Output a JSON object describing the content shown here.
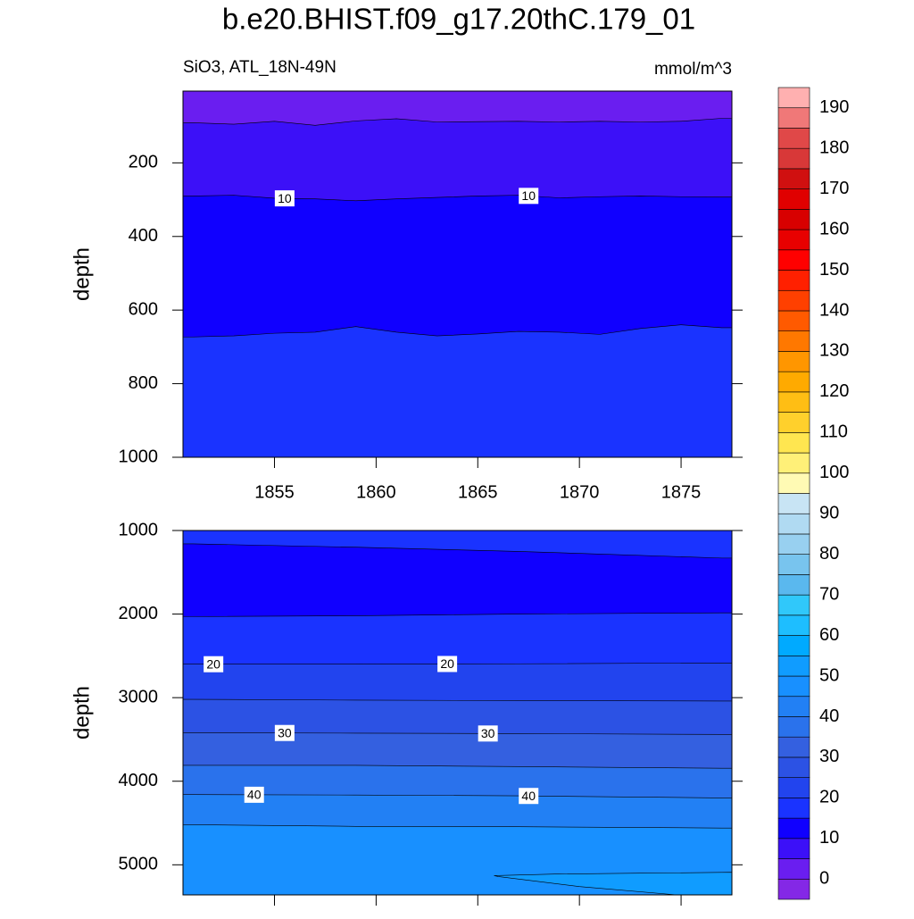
{
  "title": "b.e20.BHIST.f09_g17.20thC.179_01",
  "subtitle": "SiO3, ATL_18N-49N",
  "units": "mmol/m^3",
  "colorbar": {
    "levels": [
      0,
      5,
      10,
      15,
      20,
      25,
      30,
      35,
      40,
      45,
      50,
      55,
      60,
      65,
      70,
      75,
      80,
      85,
      90,
      95,
      100,
      105,
      110,
      115,
      120,
      125,
      130,
      135,
      140,
      145,
      150,
      155,
      160,
      165,
      170,
      175,
      180,
      185,
      190
    ],
    "ticks": [
      0,
      10,
      20,
      30,
      40,
      50,
      60,
      70,
      80,
      90,
      100,
      110,
      120,
      130,
      140,
      150,
      160,
      170,
      180,
      190
    ],
    "colors": [
      "#8428e6",
      "#6a1ef0",
      "#3c10f8",
      "#1000ff",
      "#1a33ff",
      "#2244ee",
      "#2c52e4",
      "#3460e0",
      "#2a72ec",
      "#2280f4",
      "#1890ff",
      "#109cff",
      "#00aaff",
      "#1ebeff",
      "#30c8fa",
      "#5ab8ee",
      "#78c4ee",
      "#98d0f0",
      "#b0daf2",
      "#c8e4f4",
      "#fffab4",
      "#fff078",
      "#ffe650",
      "#ffd02c",
      "#ffbe14",
      "#ffaa00",
      "#ff9600",
      "#ff7800",
      "#ff5a00",
      "#ff4000",
      "#ff2000",
      "#ff0000",
      "#e80000",
      "#d80000",
      "#e00000",
      "#d01010",
      "#d83838",
      "#e04848",
      "#f07878",
      "#ffb0b0"
    ]
  },
  "chart_data": [
    {
      "type": "contour",
      "y_label": "depth",
      "xlim": [
        1850.5,
        1877.5
      ],
      "xticks": [
        1855,
        1860,
        1865,
        1870,
        1875
      ],
      "x_tick_labels": true,
      "ylim": [
        5,
        1000
      ],
      "yticks": [
        200,
        400,
        600,
        800,
        1000
      ],
      "top_color": "#6a1ef0",
      "contours": [
        {
          "level": 5,
          "x": [
            1851,
            1853,
            1855,
            1857,
            1859,
            1861,
            1863,
            1865,
            1867,
            1869,
            1871,
            1873,
            1875,
            1877
          ],
          "depth": [
            91,
            95,
            87,
            98,
            86,
            80,
            89,
            88,
            87,
            89,
            87,
            89,
            87,
            79
          ],
          "color": "#3c10f8",
          "label_x": []
        },
        {
          "level": 10,
          "x": [
            1851,
            1853,
            1855,
            1857,
            1859,
            1861,
            1863,
            1865,
            1867,
            1869,
            1871,
            1873,
            1875,
            1877
          ],
          "depth": [
            290,
            288,
            296,
            298,
            303,
            298,
            294,
            290,
            288,
            295,
            292,
            290,
            292,
            293
          ],
          "color": "#1000ff",
          "label_x": [
            1855.5,
            1867.5
          ]
        },
        {
          "level": 15,
          "x": [
            1851,
            1853,
            1855,
            1857,
            1859,
            1861,
            1863,
            1865,
            1867,
            1869,
            1871,
            1873,
            1875,
            1877
          ],
          "depth": [
            673,
            670,
            663,
            660,
            645,
            660,
            670,
            665,
            658,
            660,
            666,
            650,
            640,
            648
          ],
          "color": "#1a33ff",
          "label_x": []
        }
      ]
    },
    {
      "type": "contour",
      "y_label": "depth",
      "xlim": [
        1850.5,
        1877.5
      ],
      "xticks": [
        1855,
        1860,
        1865,
        1870,
        1875
      ],
      "x_tick_labels": false,
      "ylim": [
        1000,
        5360
      ],
      "yticks": [
        1000,
        2000,
        3000,
        4000,
        5000
      ],
      "top_color": "#1a33ff",
      "contours": [
        {
          "level": 15,
          "x": [
            1851,
            1859,
            1867,
            1877
          ],
          "depth": [
            1160,
            1200,
            1250,
            1330
          ],
          "color": "#1000ff",
          "label_x": []
        },
        {
          "level": 15,
          "x": [
            1851,
            1859,
            1867,
            1877
          ],
          "depth": [
            2030,
            2020,
            2000,
            1985
          ],
          "color": "#1a33ff",
          "label_x": []
        },
        {
          "level": 20,
          "x": [
            1851,
            1859,
            1867,
            1877
          ],
          "depth": [
            2600,
            2600,
            2595,
            2585
          ],
          "color": "#2244ee",
          "label_x": [
            1852,
            1863.5
          ]
        },
        {
          "level": 25,
          "x": [
            1851,
            1859,
            1867,
            1877
          ],
          "depth": [
            3020,
            3030,
            3035,
            3040
          ],
          "color": "#2c52e4",
          "label_x": []
        },
        {
          "level": 30,
          "x": [
            1851,
            1859,
            1867,
            1877
          ],
          "depth": [
            3420,
            3425,
            3430,
            3440
          ],
          "color": "#3460e0",
          "label_x": [
            1855.5,
            1865.5
          ]
        },
        {
          "level": 35,
          "x": [
            1851,
            1859,
            1867,
            1877
          ],
          "depth": [
            3810,
            3810,
            3825,
            3845
          ],
          "color": "#2a72ec",
          "label_x": []
        },
        {
          "level": 40,
          "x": [
            1851,
            1859,
            1867,
            1877
          ],
          "depth": [
            4160,
            4165,
            4175,
            4200
          ],
          "color": "#2280f4",
          "label_x": [
            1854,
            1867.5
          ]
        },
        {
          "level": 45,
          "x": [
            1851,
            1859,
            1867,
            1877
          ],
          "depth": [
            4520,
            4540,
            4545,
            4560
          ],
          "color": "#1890ff",
          "label_x": []
        },
        {
          "level": 50,
          "closed": true,
          "x": [
            1865.8,
            1869,
            1873,
            1877.5,
            1877.5,
            1874.8,
            1870,
            1866
          ],
          "depth": [
            5130,
            5110,
            5100,
            5090,
            5360,
            5360,
            5260,
            5140
          ],
          "color": "#109cff",
          "label_x": []
        }
      ]
    }
  ]
}
